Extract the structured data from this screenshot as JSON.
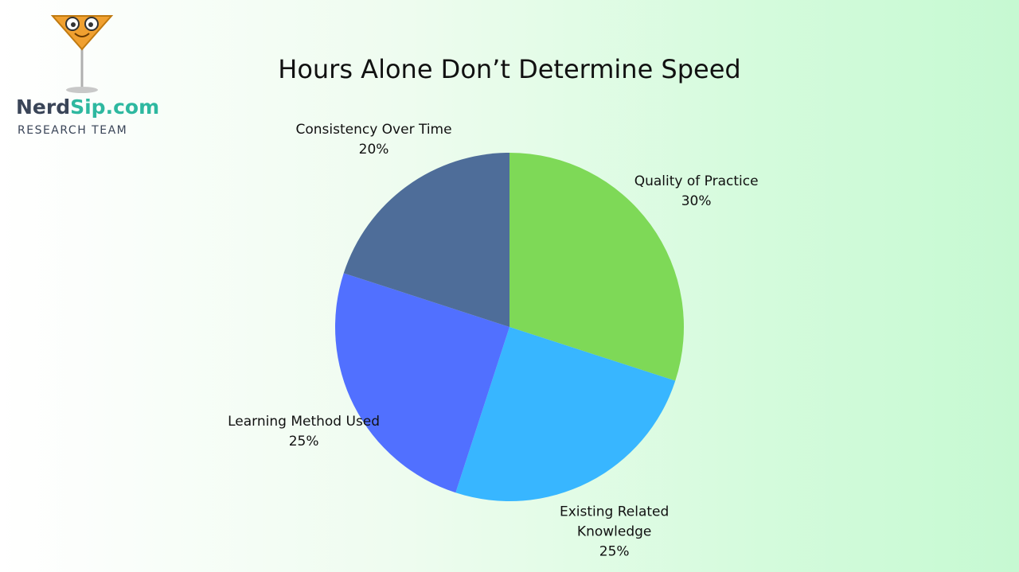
{
  "logo": {
    "brand": "Nerd",
    "brand_accent": "Sip.com",
    "subtitle": "RESEARCH TEAM"
  },
  "chart_data": {
    "type": "pie",
    "title": "Hours Alone Don’t Determine Speed",
    "categories": [
      "Quality of Practice",
      "Existing Related Knowledge",
      "Learning Method Used",
      "Consistency Over Time"
    ],
    "values": [
      30,
      25,
      25,
      20
    ],
    "value_labels": [
      "30%",
      "25%",
      "25%",
      "20%"
    ],
    "colors": [
      "#7ed957",
      "#38b6ff",
      "#5170ff",
      "#4e6d99"
    ]
  }
}
